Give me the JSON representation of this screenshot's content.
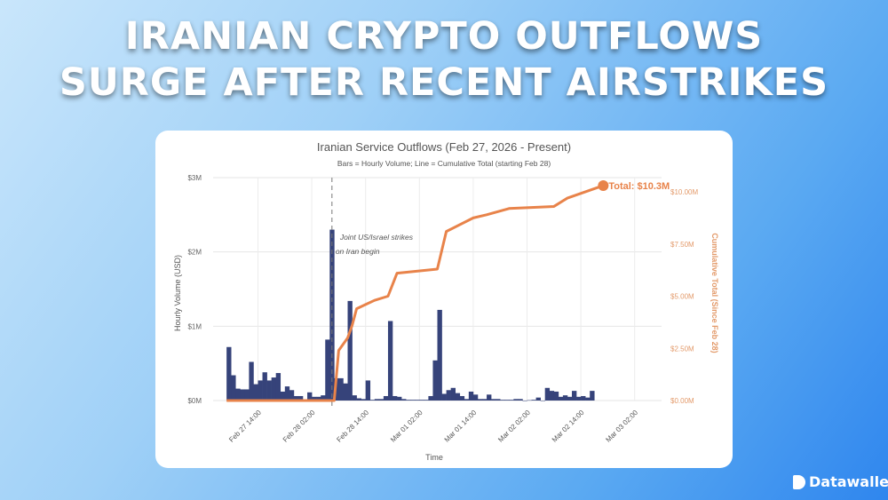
{
  "headline": {
    "line1": "IRANIAN CRYPTO OUTFLOWS",
    "line2": "SURGE AFTER RECENT AIRSTRIKES"
  },
  "brand": {
    "name": "Datawallet"
  },
  "chart_data": {
    "type": "bar+line",
    "title": "Iranian Service Outflows (Feb 27, 2026 - Present)",
    "subtitle": "Bars = Hourly Volume; Line = Cumulative Total (starting Feb 28)",
    "xlabel": "Time",
    "ylabel": "Hourly Volume (USD)",
    "y2label": "Cumulative Total (Since Feb 28)",
    "x_ticks": [
      "Feb 27 14:00",
      "Feb 28 02:00",
      "Feb 28 14:00",
      "Mar 01 02:00",
      "Mar 01 14:00",
      "Mar 02 02:00",
      "Mar 02 14:00",
      "Mar 03 02:00"
    ],
    "y_ticks": [
      "$0M",
      "$1M",
      "$2M",
      "$3M"
    ],
    "y2_ticks": [
      "$0.00M",
      "$2.50M",
      "$5.00M",
      "$7.50M",
      "$10.00M"
    ],
    "ylim": [
      0,
      3
    ],
    "y2lim": [
      0,
      10.8
    ],
    "xlim": [
      "2026-02-27 04:00",
      "2026-03-03 08:00"
    ],
    "grid": true,
    "colors": {
      "bars": "#36437a",
      "line": "#e8834a",
      "annotation": "#555555"
    },
    "bars": {
      "name": "Hourly Volume",
      "unit": "USD millions",
      "start": "2026-02-27 07:00",
      "interval_hours": 1,
      "values": [
        0.72,
        0.34,
        0.16,
        0.15,
        0.15,
        0.52,
        0.22,
        0.27,
        0.38,
        0.27,
        0.31,
        0.37,
        0.12,
        0.19,
        0.14,
        0.06,
        0.06,
        0.01,
        0.11,
        0.05,
        0.05,
        0.07,
        0.82,
        2.3,
        0.3,
        0.3,
        0.23,
        1.34,
        0.07,
        0.03,
        0.02,
        0.27,
        0.01,
        0.02,
        0.02,
        0.06,
        1.07,
        0.06,
        0.05,
        0.02,
        0.01,
        0.01,
        0.01,
        0.01,
        0.01,
        0.06,
        0.54,
        1.22,
        0.09,
        0.14,
        0.17,
        0.1,
        0.06,
        0.02,
        0.12,
        0.08,
        0.02,
        0.02,
        0.08,
        0.02,
        0.02,
        0.01,
        0.01,
        0.01,
        0.02,
        0.02,
        0.0,
        0.005,
        0.01,
        0.04,
        0.0,
        0.17,
        0.13,
        0.12,
        0.05,
        0.07,
        0.05,
        0.13,
        0.05,
        0.06,
        0.04,
        0.13
      ]
    },
    "line": {
      "name": "Cumulative Total",
      "unit": "USD millions",
      "points": [
        [
          "2026-02-27 07:00",
          0
        ],
        [
          "2026-02-28 07:00",
          0
        ],
        [
          "2026-02-28 08:00",
          2.4
        ],
        [
          "2026-02-28 10:00",
          3.0
        ],
        [
          "2026-02-28 11:00",
          3.6
        ],
        [
          "2026-02-28 12:00",
          4.4
        ],
        [
          "2026-02-28 14:00",
          4.6
        ],
        [
          "2026-02-28 16:00",
          4.8
        ],
        [
          "2026-02-28 19:00",
          5.0
        ],
        [
          "2026-02-28 21:00",
          6.1
        ],
        [
          "2026-03-01 06:00",
          6.3
        ],
        [
          "2026-03-01 08:00",
          8.1
        ],
        [
          "2026-03-01 14:00",
          8.75
        ],
        [
          "2026-03-01 17:00",
          8.9
        ],
        [
          "2026-03-01 22:00",
          9.2
        ],
        [
          "2026-03-02 08:00",
          9.3
        ],
        [
          "2026-03-02 11:00",
          9.7
        ],
        [
          "2026-03-02 19:00",
          10.3
        ]
      ]
    },
    "event": {
      "time": "2026-02-28 06:30",
      "label_line1": "Joint US/Israel strikes",
      "label_line2": "on Iran begin"
    },
    "total_label": "Total: $10.3M"
  }
}
